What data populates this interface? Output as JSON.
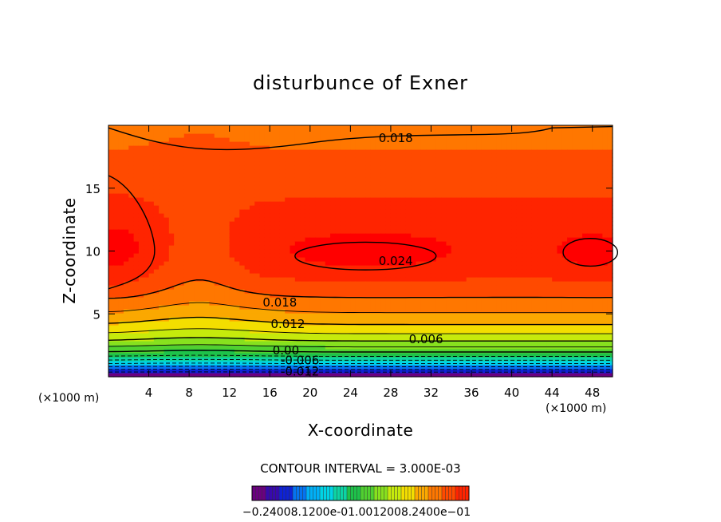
{
  "chart_data": {
    "type": "heatmap",
    "title": "disturbunce of Exner",
    "xlabel": "X-coordinate",
    "ylabel": "Z-coordinate",
    "x_unit": "(×1000 m)",
    "z_unit": "(×1000 m)",
    "xlim": [
      0,
      50
    ],
    "ylim": [
      0,
      20
    ],
    "x_ticks": [
      4,
      8,
      12,
      16,
      20,
      24,
      28,
      32,
      36,
      40,
      44,
      48
    ],
    "y_ticks": [
      5,
      10,
      15
    ],
    "contour_interval_text": "CONTOUR INTERVAL = 3.000E-03",
    "contour_labels": [
      {
        "text": "0.018",
        "x": 28.5,
        "z": 19.0
      },
      {
        "text": "0.024",
        "x": 28.5,
        "z": 9.2
      },
      {
        "text": "0.018",
        "x": 17.0,
        "z": 5.9
      },
      {
        "text": "0.012",
        "x": 17.8,
        "z": 4.2
      },
      {
        "text": "0.006",
        "x": 31.5,
        "z": 3.0
      },
      {
        "text": "0.00",
        "x": 17.6,
        "z": 2.1
      },
      {
        "text": "-0.006",
        "x": 19.0,
        "z": 1.3
      },
      {
        "text": "-0.012",
        "x": 19.0,
        "z": 0.4
      }
    ],
    "colorbar_labels": "−0.24008.1200e-01.0012008.2400e−01",
    "value_range": [
      -0.024,
      0.024
    ],
    "colormap": [
      "#6a0080",
      "#1010d0",
      "#00a0ff",
      "#00e0e0",
      "#20c040",
      "#80e020",
      "#f0f000",
      "#ff9000",
      "#ff4000",
      "#ff0000"
    ]
  }
}
